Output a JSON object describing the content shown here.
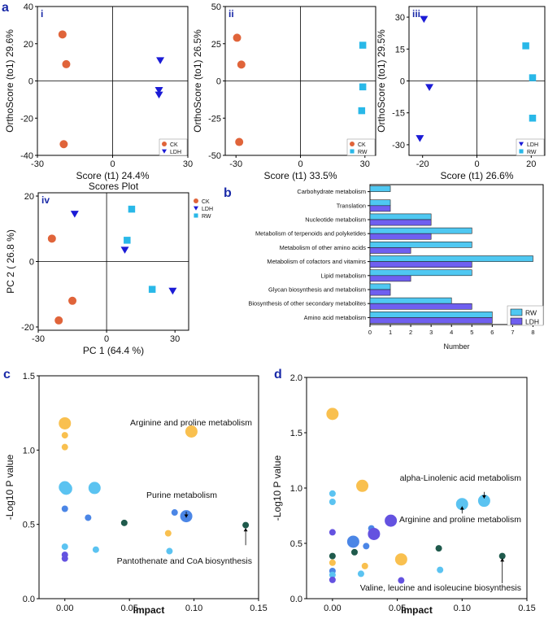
{
  "panel_labels": {
    "a": "a",
    "b": "b",
    "c": "c",
    "d": "d"
  },
  "colors": {
    "CK": "#e0643a",
    "LDH": "#1b1bd6",
    "RW": "#29b8e8",
    "bar_RW": "#4fc8f2",
    "bar_LDH": "#6f5ff0",
    "orange": "#f9c04f",
    "lightblue": "#5bc3f1",
    "midblue": "#4b86e6",
    "purple": "#6452e0",
    "darkteal": "#1f5a4c"
  },
  "chart_data": [
    {
      "id": "a-i",
      "type": "scatter",
      "sublabel": "i",
      "xlabel": "Score (t1) 24.4%",
      "ylabel": "OrthoScore (to1) 29.6%",
      "xlim": [
        -30,
        30
      ],
      "ylim": [
        -40,
        40
      ],
      "xticks": [
        "-30",
        "0",
        "30"
      ],
      "yticks": [
        "-40",
        "-20",
        "0",
        "20",
        "40"
      ],
      "legend": [
        "CK",
        "LDH"
      ],
      "series": [
        {
          "name": "CK",
          "points": [
            [
              -20,
              25
            ],
            [
              -18.5,
              9
            ],
            [
              -19.5,
              -34
            ]
          ]
        },
        {
          "name": "LDH",
          "points": [
            [
              19,
              11
            ],
            [
              18.5,
              -5
            ],
            [
              18.5,
              -7.5
            ]
          ]
        }
      ]
    },
    {
      "id": "a-ii",
      "type": "scatter",
      "sublabel": "ii",
      "xlabel": "Score (t1) 33.5%",
      "ylabel": "OrthoScore (to1) 26.5%",
      "xlim": [
        -35,
        35
      ],
      "ylim": [
        -50,
        50
      ],
      "xticks": [
        "-30",
        "0",
        "30"
      ],
      "yticks": [
        "-50",
        "-25",
        "0",
        "25",
        "50"
      ],
      "legend": [
        "CK",
        "RW"
      ],
      "series": [
        {
          "name": "CK",
          "points": [
            [
              -29.5,
              29
            ],
            [
              -27.5,
              11
            ],
            [
              -28.5,
              -41
            ]
          ]
        },
        {
          "name": "RW",
          "points": [
            [
              29,
              24
            ],
            [
              29,
              -4
            ],
            [
              28.5,
              -20
            ]
          ]
        }
      ]
    },
    {
      "id": "a-iii",
      "type": "scatter",
      "sublabel": "iii",
      "xlabel": "Score (t1) 26.6%",
      "ylabel": "OrthoScore (to1) 29.5%",
      "xlim": [
        -25,
        25
      ],
      "ylim": [
        -35,
        35
      ],
      "xticks": [
        "-20",
        "0",
        "20"
      ],
      "yticks": [
        "-30",
        "-15",
        "0",
        "15",
        "30"
      ],
      "legend": [
        "LDH",
        "RW"
      ],
      "series": [
        {
          "name": "LDH",
          "points": [
            [
              -19.5,
              29
            ],
            [
              -17.5,
              -3
            ],
            [
              -21,
              -27
            ]
          ]
        },
        {
          "name": "RW",
          "points": [
            [
              18,
              16.5
            ],
            [
              20.5,
              1.5
            ],
            [
              20.5,
              -17.5
            ]
          ]
        }
      ]
    },
    {
      "id": "a-iv",
      "type": "scatter",
      "sublabel": "iv",
      "title": "Scores Plot",
      "xlabel": "PC 1 (64.4 %)",
      "ylabel": "PC 2 ( 26.8 %)",
      "xlim": [
        -30,
        36
      ],
      "ylim": [
        -21,
        21
      ],
      "xticks": [
        "-30",
        "0",
        "30"
      ],
      "yticks": [
        "-20",
        "0",
        "20"
      ],
      "legend": [
        "CK",
        "LDH",
        "RW"
      ],
      "series": [
        {
          "name": "CK",
          "points": [
            [
              -24,
              7
            ],
            [
              -15,
              -12
            ],
            [
              -21,
              -18
            ]
          ]
        },
        {
          "name": "LDH",
          "points": [
            [
              -14,
              14.5
            ],
            [
              8,
              3.5
            ],
            [
              29,
              -9
            ]
          ]
        },
        {
          "name": "RW",
          "points": [
            [
              11,
              16
            ],
            [
              9,
              6.5
            ],
            [
              20,
              -8.5
            ]
          ]
        }
      ]
    },
    {
      "id": "b",
      "type": "bar",
      "orientation": "horizontal",
      "xlabel": "Number",
      "xlim": [
        0,
        8.5
      ],
      "xticks": [
        "0",
        "1",
        "2",
        "3",
        "4",
        "5",
        "6",
        "7",
        "8"
      ],
      "categories": [
        "Carbohydrate metabolism",
        "Translation",
        "Nucleotide metabolism",
        "Metabolism of terpenoids and polyketides",
        "Metabolism of other amino acids",
        "Metabolism of cofactors and vitamins",
        "Lipid metabolism",
        "Glycan biosynthesis and metabolism",
        "Biosynthesis of other secondary metabolites",
        "Amino acid metabolism"
      ],
      "series": [
        {
          "name": "RW",
          "values": [
            1,
            1,
            3,
            5,
            5,
            8,
            5,
            1,
            4,
            6
          ]
        },
        {
          "name": "LDH",
          "values": [
            0,
            1,
            3,
            3,
            2,
            5,
            2,
            1,
            5,
            6
          ]
        }
      ]
    },
    {
      "id": "c",
      "type": "scatter",
      "xlabel": "Impact",
      "ylabel": "-Log10 P value",
      "xlim": [
        -0.02,
        0.15
      ],
      "ylim": [
        0,
        1.5
      ],
      "xticks": [
        "0.00",
        "0.05",
        "0.10",
        "0.15"
      ],
      "yticks": [
        "0.0",
        "0.5",
        "1.0",
        "1.5"
      ],
      "annotations": [
        "Arginine and proline metabolism",
        "Purine metabolism",
        "Pantothenate and CoA biosynthesis"
      ],
      "points": [
        {
          "x": 0.0,
          "y": 1.18,
          "size": "large",
          "color": "orange"
        },
        {
          "x": 0.0,
          "y": 1.1,
          "size": "small",
          "color": "orange"
        },
        {
          "x": 0.0,
          "y": 1.02,
          "size": "small",
          "color": "orange"
        },
        {
          "x": 0.0,
          "y": 0.75,
          "size": "large",
          "color": "lightblue"
        },
        {
          "x": 0.001,
          "y": 0.74,
          "size": "large",
          "color": "lightblue"
        },
        {
          "x": 0.023,
          "y": 0.745,
          "size": "large",
          "color": "lightblue"
        },
        {
          "x": 0.0,
          "y": 0.605,
          "size": "small",
          "color": "midblue"
        },
        {
          "x": 0.0,
          "y": 0.35,
          "size": "small",
          "color": "lightblue"
        },
        {
          "x": 0.0,
          "y": 0.295,
          "size": "small",
          "color": "purple"
        },
        {
          "x": 0.0,
          "y": 0.27,
          "size": "small",
          "color": "purple"
        },
        {
          "x": 0.018,
          "y": 0.545,
          "size": "small",
          "color": "midblue"
        },
        {
          "x": 0.024,
          "y": 0.33,
          "size": "small",
          "color": "lightblue"
        },
        {
          "x": 0.046,
          "y": 0.51,
          "size": "small",
          "color": "darkteal"
        },
        {
          "x": 0.08,
          "y": 0.44,
          "size": "small",
          "color": "orange"
        },
        {
          "x": 0.081,
          "y": 0.32,
          "size": "small",
          "color": "lightblue"
        },
        {
          "x": 0.085,
          "y": 0.58,
          "size": "small",
          "color": "midblue"
        },
        {
          "x": 0.094,
          "y": 0.555,
          "size": "large",
          "color": "midblue"
        },
        {
          "x": 0.098,
          "y": 1.125,
          "size": "large",
          "color": "orange"
        },
        {
          "x": 0.14,
          "y": 0.495,
          "size": "small",
          "color": "darkteal"
        }
      ]
    },
    {
      "id": "d",
      "type": "scatter",
      "xlabel": "Impact",
      "ylabel": "-Log10 P value",
      "xlim": [
        -0.02,
        0.15
      ],
      "ylim": [
        0,
        2.0
      ],
      "xticks": [
        "0.00",
        "0.05",
        "0.10",
        "0.15"
      ],
      "yticks": [
        "0.0",
        "0.5",
        "1.0",
        "1.5",
        "2.0"
      ],
      "annotations": [
        "alpha-Linolenic acid metabolism",
        "Arginine and proline metabolism",
        "Valine, leucine and isoleucine biosynthesis"
      ],
      "points": [
        {
          "x": 0.0,
          "y": 1.67,
          "size": "large",
          "color": "orange"
        },
        {
          "x": 0.0,
          "y": 0.95,
          "size": "small",
          "color": "lightblue"
        },
        {
          "x": 0.0,
          "y": 0.875,
          "size": "small",
          "color": "lightblue"
        },
        {
          "x": 0.0,
          "y": 0.6,
          "size": "small",
          "color": "purple"
        },
        {
          "x": 0.0,
          "y": 0.385,
          "size": "small",
          "color": "darkteal"
        },
        {
          "x": 0.0,
          "y": 0.325,
          "size": "small",
          "color": "orange"
        },
        {
          "x": 0.0,
          "y": 0.25,
          "size": "small",
          "color": "midblue"
        },
        {
          "x": 0.0,
          "y": 0.215,
          "size": "small",
          "color": "lightblue"
        },
        {
          "x": 0.0,
          "y": 0.17,
          "size": "small",
          "color": "purple"
        },
        {
          "x": 0.016,
          "y": 0.515,
          "size": "large",
          "color": "midblue"
        },
        {
          "x": 0.017,
          "y": 0.42,
          "size": "small",
          "color": "darkteal"
        },
        {
          "x": 0.022,
          "y": 0.225,
          "size": "small",
          "color": "lightblue"
        },
        {
          "x": 0.023,
          "y": 1.02,
          "size": "large",
          "color": "orange"
        },
        {
          "x": 0.025,
          "y": 0.295,
          "size": "small",
          "color": "orange"
        },
        {
          "x": 0.026,
          "y": 0.475,
          "size": "small",
          "color": "midblue"
        },
        {
          "x": 0.03,
          "y": 0.635,
          "size": "small",
          "color": "midblue"
        },
        {
          "x": 0.032,
          "y": 0.585,
          "size": "large",
          "color": "purple"
        },
        {
          "x": 0.045,
          "y": 0.705,
          "size": "large",
          "color": "purple"
        },
        {
          "x": 0.053,
          "y": 0.165,
          "size": "small",
          "color": "purple"
        },
        {
          "x": 0.053,
          "y": 0.355,
          "size": "large",
          "color": "orange"
        },
        {
          "x": 0.082,
          "y": 0.455,
          "size": "small",
          "color": "darkteal"
        },
        {
          "x": 0.083,
          "y": 0.26,
          "size": "small",
          "color": "lightblue"
        },
        {
          "x": 0.1,
          "y": 0.855,
          "size": "large",
          "color": "lightblue"
        },
        {
          "x": 0.117,
          "y": 0.885,
          "size": "large",
          "color": "lightblue"
        },
        {
          "x": 0.131,
          "y": 0.385,
          "size": "small",
          "color": "darkteal"
        }
      ]
    }
  ]
}
